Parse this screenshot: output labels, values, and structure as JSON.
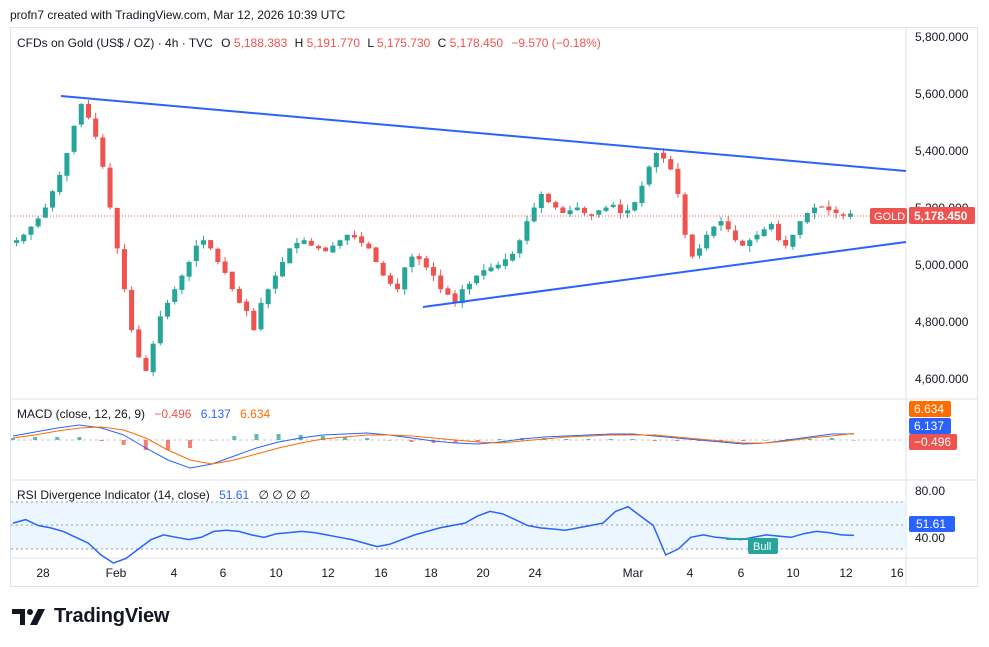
{
  "header": {
    "created_by": "profn7 created with TradingView.com, Mar 12, 2026 10:39 UTC"
  },
  "brand": {
    "name": "TradingView"
  },
  "price_pane": {
    "symbol": "CFDs on Gold (US$ / OZ) · 4h · TVC",
    "ohlc": {
      "o_label": "O",
      "o": "5,188.383",
      "h_label": "H",
      "h": "5,191.770",
      "l_label": "L",
      "l": "5,175.730",
      "c_label": "C",
      "c": "5,178.450",
      "change": "−9.570 (−0.18%)"
    },
    "last_tag": {
      "ticker": "GOLD",
      "price": "5,178.450"
    },
    "y_ticks": [
      "5,800.000",
      "5,600.000",
      "5,400.000",
      "5,200.000",
      "5,000.000",
      "4,800.000",
      "4,600.000"
    ]
  },
  "macd_pane": {
    "title": "MACD (close, 12, 26, 9)",
    "hist_value": "−0.496",
    "macd_value": "6.137",
    "signal_value": "6.634",
    "tags": {
      "signal": "6.634",
      "macd": "6.137",
      "hist": "−0.496"
    }
  },
  "rsi_pane": {
    "title": "RSI Divergence Indicator (14, close)",
    "value": "51.61",
    "extra": "∅ ∅ ∅ ∅",
    "y_ticks": [
      "80.00",
      "40.00"
    ],
    "tag": "51.61",
    "bull_label": "Bull"
  },
  "x_axis": {
    "ticks": [
      "28",
      "Feb",
      "4",
      "6",
      "10",
      "12",
      "16",
      "18",
      "20",
      "24",
      "Mar",
      "4",
      "6",
      "10",
      "12",
      "16"
    ]
  },
  "colors": {
    "up": "#26a69a",
    "down": "#ef5350",
    "trend": "#2962ff",
    "macd": "#2962ff",
    "signal": "#ff6d00",
    "rsi": "#2962ff",
    "bull": "#26a69a"
  },
  "chart_data": {
    "type": "candlestick",
    "timeframe": "4h",
    "y_range": [
      4530,
      5830
    ],
    "close_series_approx": [
      5080,
      5100,
      5130,
      5160,
      5200,
      5260,
      5320,
      5400,
      5500,
      5580,
      5530,
      5460,
      5350,
      5200,
      5050,
      4900,
      4750,
      4650,
      4600,
      4700,
      4800,
      4850,
      4900,
      4950,
      5000,
      5060,
      5080,
      5050,
      5000,
      4960,
      4900,
      4850,
      4820,
      4750,
      4850,
      4900,
      4950,
      5000,
      5050,
      5070,
      5080,
      5060,
      5050,
      5040,
      5060,
      5080,
      5100,
      5090,
      5070,
      5050,
      5000,
      4950,
      4920,
      4900,
      4980,
      5020,
      5010,
      4980,
      4950,
      4900,
      4880,
      4850,
      4900,
      4920,
      4950,
      4970,
      4980,
      4990,
      5010,
      5030,
      5080,
      5150,
      5200,
      5250,
      5220,
      5200,
      5180,
      5190,
      5200,
      5180,
      5170,
      5190,
      5200,
      5210,
      5180,
      5190,
      5220,
      5280,
      5350,
      5400,
      5380,
      5340,
      5250,
      5100,
      5020,
      5050,
      5100,
      5130,
      5150,
      5120,
      5080,
      5060,
      5080,
      5100,
      5120,
      5140,
      5080,
      5060,
      5100,
      5150,
      5180,
      5200,
      5200,
      5190,
      5180,
      5170,
      5178
    ],
    "trendlines": [
      {
        "from": [
          "Jan 29",
          5600
        ],
        "to": [
          "Mar 13",
          5330
        ]
      },
      {
        "from": [
          "Feb 17",
          4850
        ],
        "to": [
          "Mar 13",
          5075
        ]
      }
    ],
    "rsi_approx": [
      62,
      65,
      60,
      58,
      55,
      50,
      45,
      35,
      28,
      32,
      40,
      48,
      52,
      50,
      48,
      50,
      55,
      56,
      55,
      52,
      50,
      53,
      54,
      55,
      54,
      52,
      50,
      48,
      45,
      42,
      44,
      48,
      52,
      55,
      58,
      60,
      62,
      68,
      72,
      70,
      65,
      60,
      58,
      57,
      56,
      58,
      60,
      62,
      72,
      76,
      68,
      60,
      35,
      40,
      50,
      52,
      50,
      49,
      48,
      50,
      52,
      51,
      50,
      53,
      55,
      54,
      52,
      51.61
    ],
    "macd_approx": [
      4,
      8,
      12,
      15,
      12,
      5,
      -8,
      -20,
      -28,
      -24,
      -16,
      -8,
      -2,
      2,
      5,
      6,
      7,
      5,
      2,
      -1,
      -3,
      -4,
      -2,
      1,
      3,
      4,
      5,
      6,
      6,
      4,
      2,
      0,
      -2,
      -4,
      -3,
      0,
      3,
      6,
      6.137
    ],
    "signal_approx": [
      2,
      5,
      9,
      12,
      13,
      10,
      2,
      -10,
      -20,
      -24,
      -20,
      -14,
      -8,
      -3,
      1,
      3,
      5,
      5,
      4,
      2,
      0,
      -2,
      -3,
      -1,
      1,
      3,
      4,
      5,
      5,
      5,
      3,
      1,
      -1,
      -3,
      -3,
      -1,
      2,
      4,
      6.634
    ]
  }
}
